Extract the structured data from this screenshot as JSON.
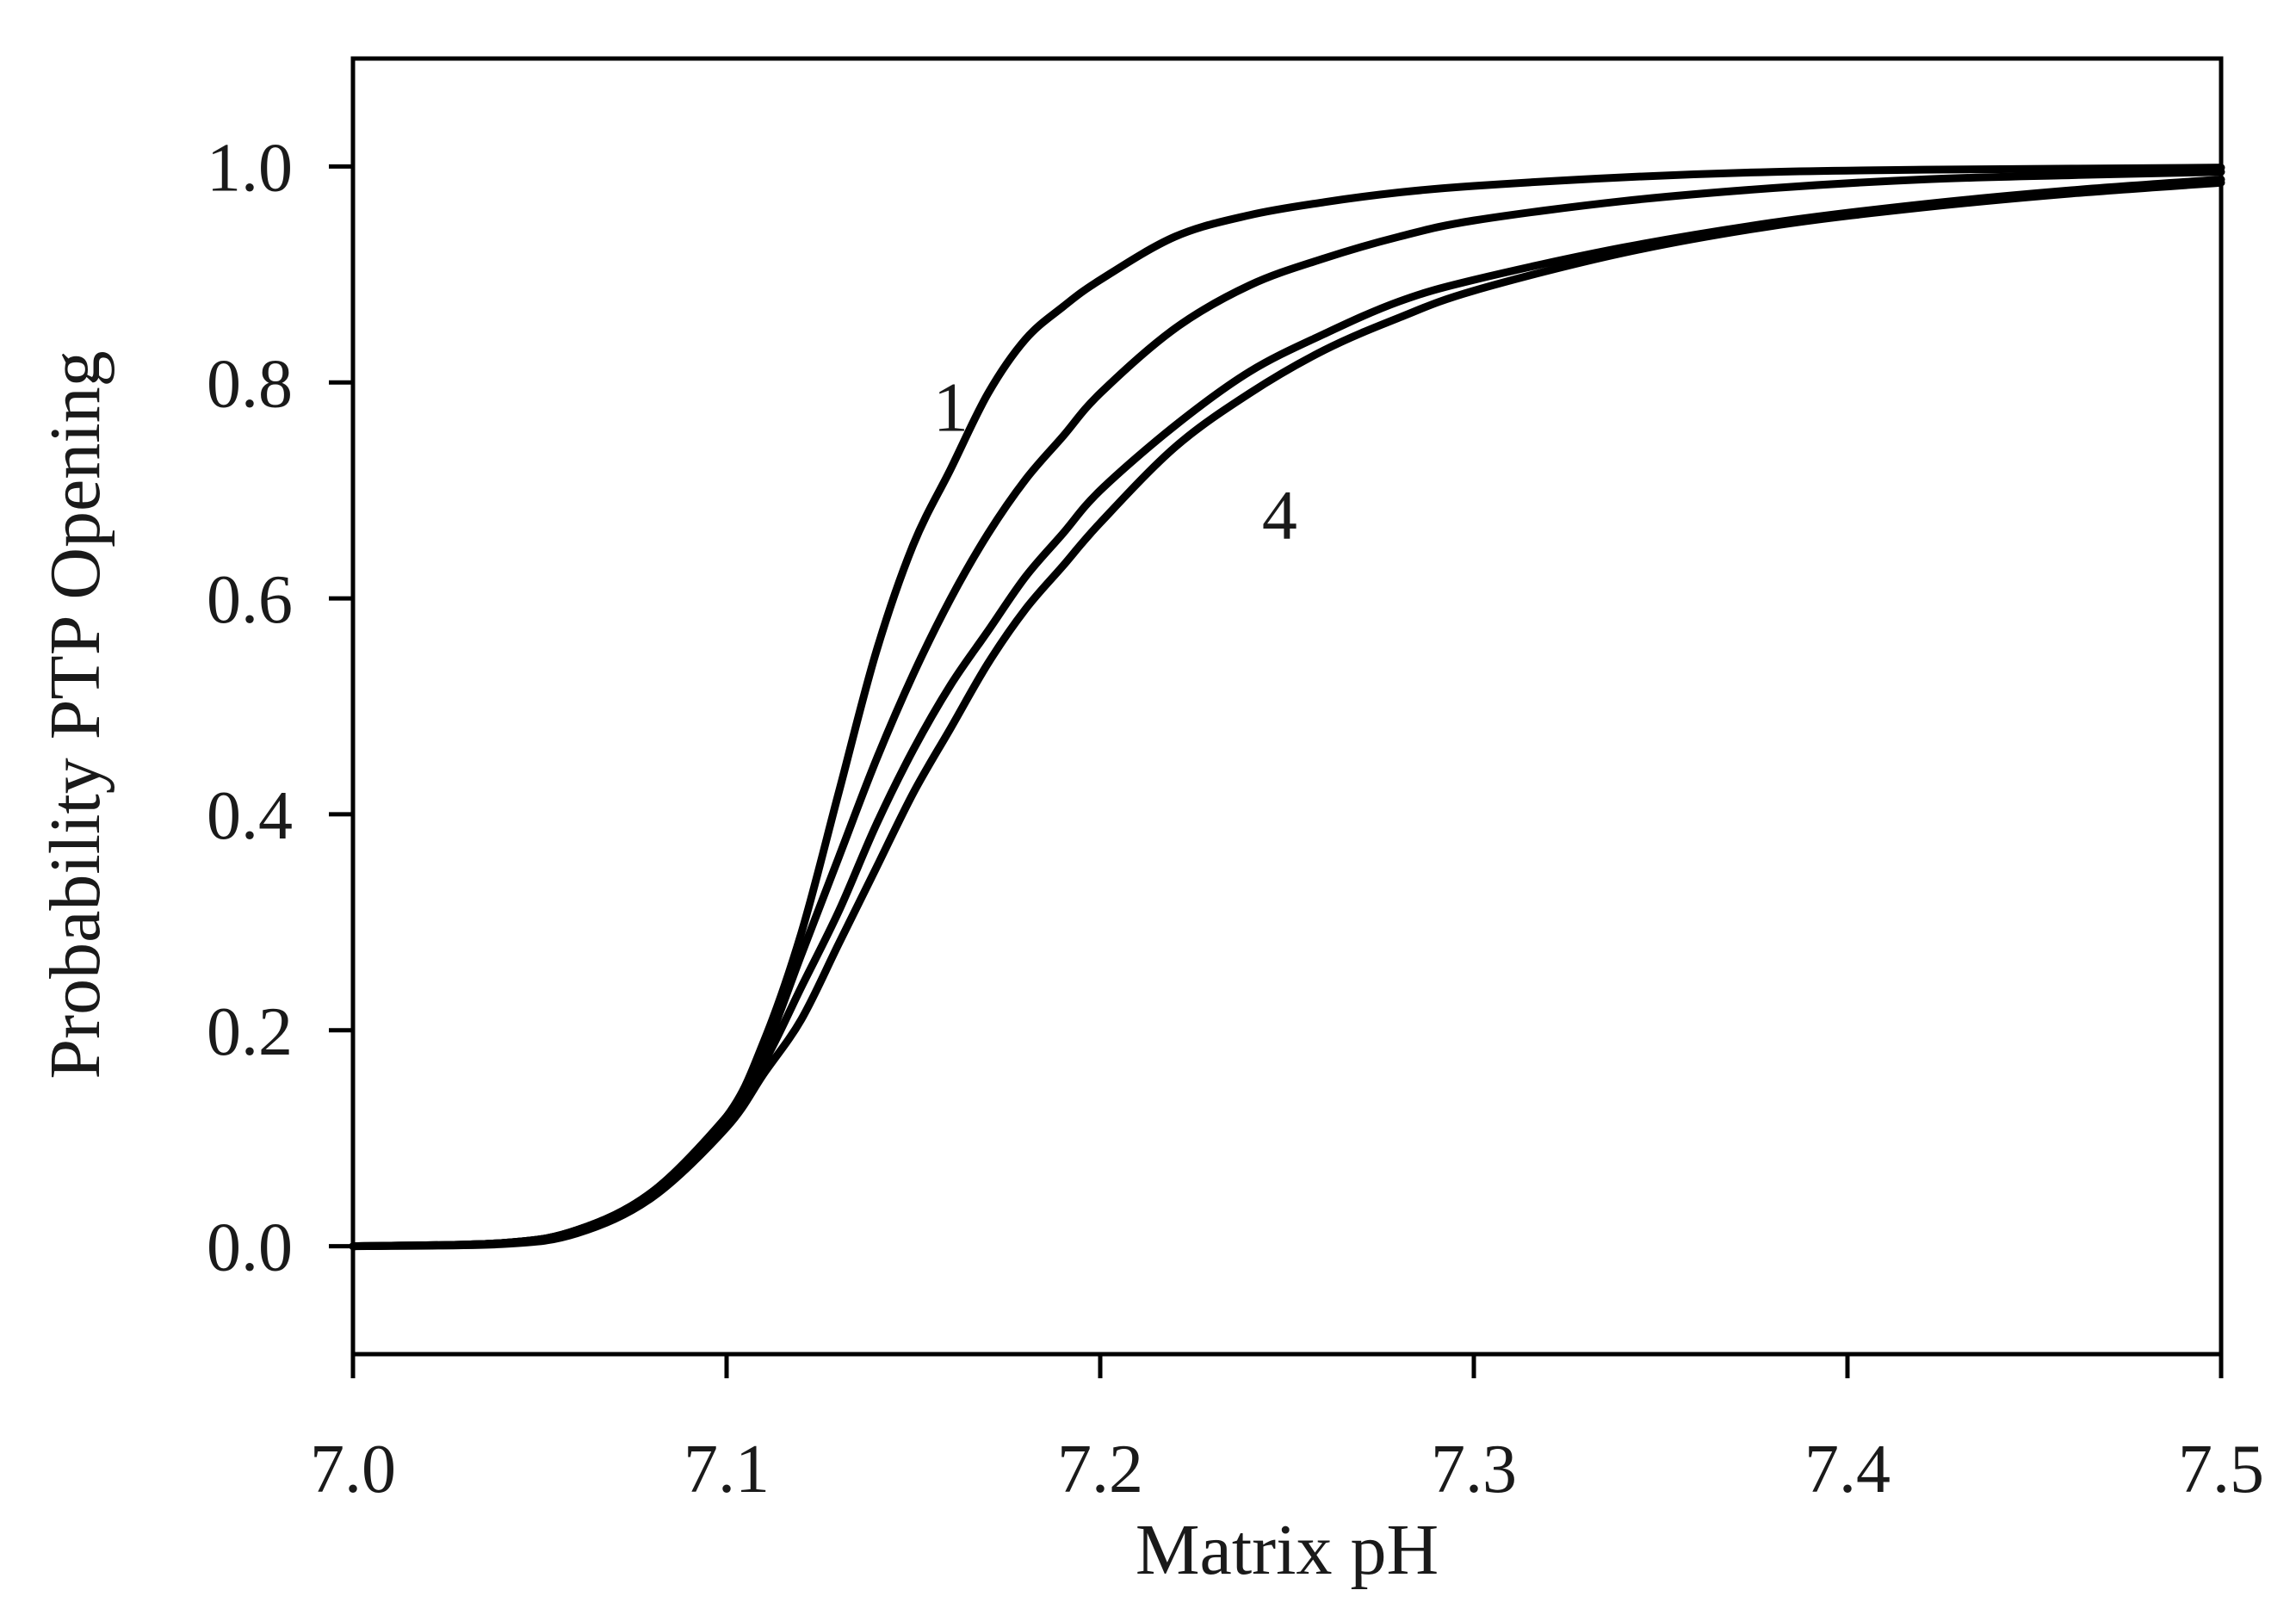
{
  "chart_data": {
    "type": "line",
    "title": "",
    "xlabel": "Matrix pH",
    "ylabel": "Probability PTP Opening",
    "xlim": [
      7.0,
      7.5
    ],
    "ylim": [
      -0.1,
      1.1
    ],
    "x_ticks": [
      7.0,
      7.1,
      7.2,
      7.3,
      7.4,
      7.5
    ],
    "y_ticks": [
      0.0,
      0.2,
      0.4,
      0.6,
      0.8,
      1.0
    ],
    "x_tick_labels": [
      "7.0",
      "7.1",
      "7.2",
      "7.3",
      "7.4",
      "7.5"
    ],
    "y_tick_labels": [
      "0.0",
      "0.2",
      "0.4",
      "0.6",
      "0.8",
      "1.0"
    ],
    "grid": false,
    "legend": "none",
    "line_color": "#000000",
    "series": [
      {
        "x": [
          7.0,
          7.04,
          7.06,
          7.08,
          7.1,
          7.11,
          7.12,
          7.13,
          7.14,
          7.15,
          7.16,
          7.17,
          7.18,
          7.19,
          7.2,
          7.22,
          7.24,
          7.26,
          7.28,
          7.3,
          7.34,
          7.38,
          7.42,
          7.46,
          7.5
        ],
        "y": [
          0.0,
          0.003,
          0.015,
          0.05,
          0.12,
          0.19,
          0.29,
          0.42,
          0.55,
          0.65,
          0.72,
          0.79,
          0.84,
          0.87,
          0.895,
          0.935,
          0.955,
          0.967,
          0.976,
          0.982,
          0.99,
          0.995,
          0.997,
          0.998,
          0.999
        ]
      },
      {
        "x": [
          7.0,
          7.04,
          7.06,
          7.08,
          7.1,
          7.11,
          7.12,
          7.13,
          7.14,
          7.15,
          7.16,
          7.17,
          7.18,
          7.19,
          7.2,
          7.22,
          7.24,
          7.26,
          7.28,
          7.3,
          7.34,
          7.38,
          7.42,
          7.46,
          7.5
        ],
        "y": [
          0.0,
          0.003,
          0.015,
          0.05,
          0.12,
          0.18,
          0.27,
          0.36,
          0.45,
          0.53,
          0.6,
          0.66,
          0.71,
          0.75,
          0.79,
          0.85,
          0.89,
          0.915,
          0.935,
          0.95,
          0.968,
          0.98,
          0.988,
          0.992,
          0.995
        ]
      },
      {
        "x": [
          7.0,
          7.04,
          7.06,
          7.08,
          7.1,
          7.11,
          7.12,
          7.13,
          7.14,
          7.15,
          7.16,
          7.17,
          7.18,
          7.19,
          7.2,
          7.22,
          7.24,
          7.26,
          7.28,
          7.3,
          7.34,
          7.38,
          7.42,
          7.46,
          7.5
        ],
        "y": [
          0.0,
          0.003,
          0.015,
          0.05,
          0.12,
          0.17,
          0.24,
          0.31,
          0.39,
          0.46,
          0.52,
          0.57,
          0.62,
          0.66,
          0.7,
          0.76,
          0.81,
          0.845,
          0.875,
          0.895,
          0.925,
          0.948,
          0.965,
          0.978,
          0.988
        ]
      },
      {
        "x": [
          7.0,
          7.04,
          7.06,
          7.08,
          7.1,
          7.11,
          7.12,
          7.13,
          7.14,
          7.15,
          7.16,
          7.17,
          7.18,
          7.19,
          7.2,
          7.22,
          7.24,
          7.26,
          7.28,
          7.3,
          7.34,
          7.38,
          7.42,
          7.46,
          7.5
        ],
        "y": [
          0.0,
          0.002,
          0.012,
          0.045,
          0.11,
          0.16,
          0.21,
          0.28,
          0.35,
          0.42,
          0.48,
          0.54,
          0.59,
          0.63,
          0.67,
          0.74,
          0.79,
          0.83,
          0.86,
          0.885,
          0.92,
          0.945,
          0.962,
          0.975,
          0.985
        ]
      }
    ],
    "annotations": [
      {
        "text": "1",
        "x": 7.16,
        "y": 0.755
      },
      {
        "text": "4",
        "x": 7.248,
        "y": 0.655
      }
    ]
  }
}
